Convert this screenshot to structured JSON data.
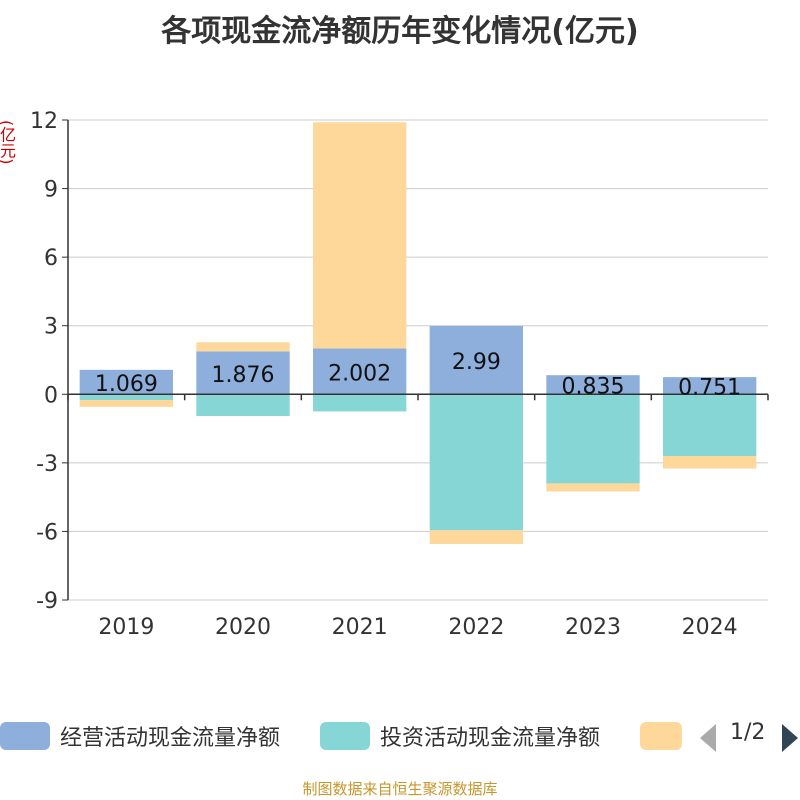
{
  "title": "各项现金流净额历年变化情况(亿元)",
  "unit_label": "(亿元)",
  "source": "制图数据来自恒生聚源数据库",
  "legend": {
    "items": [
      {
        "label": "经营活动现金流量净额",
        "color": "#8eaedc"
      },
      {
        "label": "投资活动现金流量净额",
        "color": "#87d6d6"
      },
      {
        "label": "",
        "color": "#fdd89a"
      }
    ],
    "page_indicator": "1/2"
  },
  "chart_data": {
    "type": "bar",
    "stacked": true,
    "categories": [
      "2019",
      "2020",
      "2021",
      "2022",
      "2023",
      "2024"
    ],
    "series": [
      {
        "name": "经营活动现金流量净额",
        "color": "#8eaedc",
        "values": [
          1.069,
          1.876,
          2.002,
          2.99,
          0.835,
          0.751
        ],
        "data_labels": [
          "1.069",
          "1.876",
          "2.002",
          "2.99",
          "0.835",
          "0.751"
        ]
      },
      {
        "name": "投资活动现金流量净额",
        "color": "#87d6d6",
        "values": [
          -0.25,
          -0.95,
          -0.75,
          -5.95,
          -3.9,
          -2.7
        ]
      },
      {
        "color": "#fdd89a",
        "values": [
          -0.3,
          0.4,
          9.9,
          -0.6,
          -0.35,
          -0.55
        ]
      }
    ],
    "ylim": [
      -9,
      12
    ],
    "yticks": [
      -9,
      -6,
      -3,
      0,
      3,
      6,
      9,
      12
    ],
    "grid": true,
    "legend_position": "bottom"
  }
}
